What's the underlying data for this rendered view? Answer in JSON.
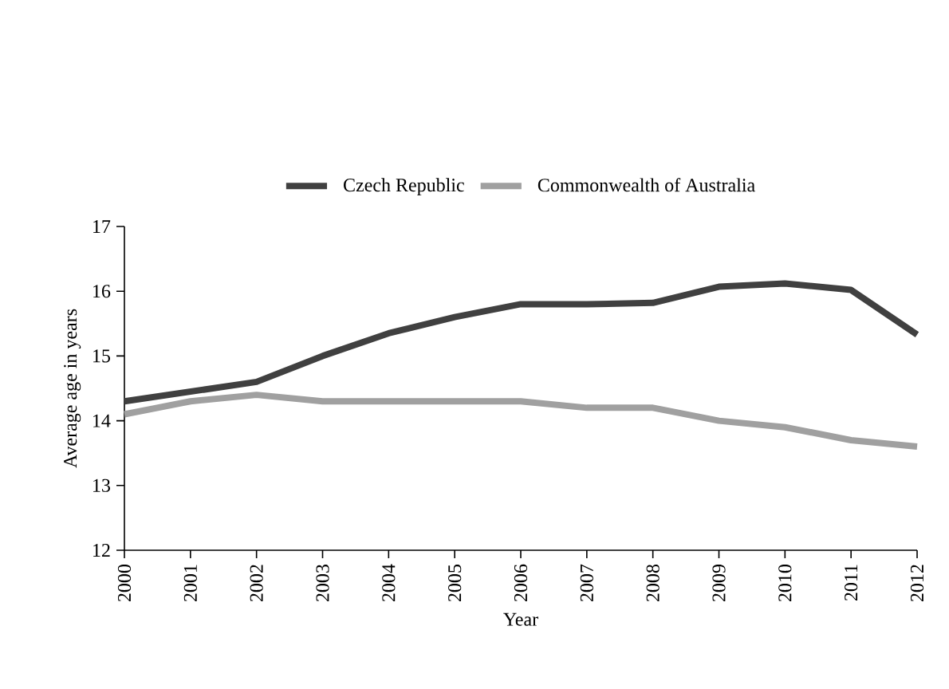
{
  "chart_data": {
    "type": "line",
    "xlabel": "Year",
    "ylabel": "Average age in years",
    "categories": [
      "2000",
      "2001",
      "2002",
      "2003",
      "2004",
      "2005",
      "2006",
      "2007",
      "2008",
      "2009",
      "2010",
      "2011",
      "2012"
    ],
    "series": [
      {
        "name": "Czech Republic",
        "color": "#404040",
        "values": [
          14.3,
          14.45,
          14.6,
          15.0,
          15.35,
          15.6,
          15.8,
          15.8,
          15.82,
          16.07,
          16.12,
          16.02,
          15.33
        ]
      },
      {
        "name": "Commonwealth of Australia",
        "color": "#a0a0a0",
        "values": [
          14.1,
          14.3,
          14.4,
          14.3,
          14.3,
          14.3,
          14.3,
          14.2,
          14.2,
          14.0,
          13.9,
          13.7,
          13.6
        ]
      }
    ],
    "ylim": [
      12,
      17
    ],
    "yticks": [
      12,
      13,
      14,
      15,
      16,
      17
    ],
    "grid": false,
    "legend": "top",
    "marker": "none",
    "line_style": "solid"
  }
}
